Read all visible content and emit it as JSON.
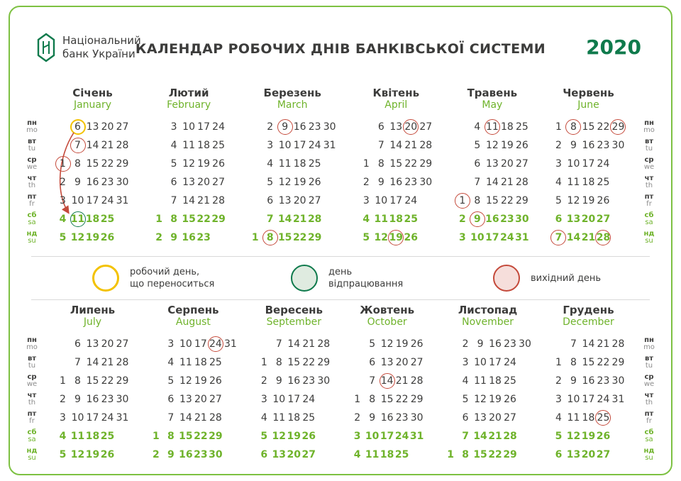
{
  "header": {
    "logo_text": "Національний\nбанк України",
    "title": "КАЛЕНДАР РОБОЧИХ ДНІВ БАНКІВСЬКОЇ СИСТЕМИ",
    "year": "2020"
  },
  "colors": {
    "accent": "#6FB32B",
    "border": "#7DC142",
    "dark": "#3C3C3B",
    "red": "#C4493A",
    "yellow": "#F3C200",
    "darkgreen": "#0F7A4C",
    "pinkfill": "#F6DEDB",
    "greenfill": "#DFEBE0"
  },
  "weekday_labels": [
    {
      "ua": "пн",
      "en": "mo"
    },
    {
      "ua": "вт",
      "en": "tu"
    },
    {
      "ua": "ср",
      "en": "we"
    },
    {
      "ua": "чт",
      "en": "th"
    },
    {
      "ua": "пт",
      "en": "fr"
    },
    {
      "ua": "сб",
      "en": "sa"
    },
    {
      "ua": "нд",
      "en": "su"
    }
  ],
  "legend": {
    "items": [
      {
        "type": "moved-working-day",
        "label": "робочий день,\nщо переноситься"
      },
      {
        "type": "workoff-day",
        "label": "день\nвідпрацювання"
      },
      {
        "type": "day-off",
        "label": "вихідний день"
      }
    ]
  },
  "months": [
    {
      "ua": "Січень",
      "en": "January",
      "cols": 5,
      "arrow": true,
      "rows": [
        [
          null,
          6,
          13,
          20,
          27
        ],
        [
          null,
          7,
          14,
          21,
          28
        ],
        [
          1,
          8,
          15,
          22,
          29
        ],
        [
          2,
          9,
          16,
          23,
          30
        ],
        [
          3,
          10,
          17,
          24,
          31
        ],
        [
          4,
          11,
          18,
          25,
          null
        ],
        [
          5,
          12,
          19,
          26,
          null
        ]
      ],
      "marks": {
        "1": "red",
        "7": "red",
        "6": "yellow",
        "11": "green"
      }
    },
    {
      "ua": "Лютий",
      "en": "February",
      "cols": 5,
      "rows": [
        [
          null,
          3,
          10,
          17,
          24
        ],
        [
          null,
          4,
          11,
          18,
          25
        ],
        [
          null,
          5,
          12,
          19,
          26
        ],
        [
          null,
          6,
          13,
          20,
          27
        ],
        [
          null,
          7,
          14,
          21,
          28
        ],
        [
          1,
          8,
          15,
          22,
          29
        ],
        [
          2,
          9,
          16,
          23,
          null
        ]
      ],
      "marks": {}
    },
    {
      "ua": "Березень",
      "en": "March",
      "cols": 6,
      "rows": [
        [
          null,
          2,
          9,
          16,
          23,
          30
        ],
        [
          null,
          3,
          10,
          17,
          24,
          31
        ],
        [
          null,
          4,
          11,
          18,
          25,
          null
        ],
        [
          null,
          5,
          12,
          19,
          26,
          null
        ],
        [
          null,
          6,
          13,
          20,
          27,
          null
        ],
        [
          null,
          7,
          14,
          21,
          28,
          null
        ],
        [
          1,
          8,
          15,
          22,
          29,
          null
        ]
      ],
      "marks": {
        "9": "red",
        "8": "red"
      }
    },
    {
      "ua": "Квітень",
      "en": "April",
      "cols": 5,
      "rows": [
        [
          null,
          6,
          13,
          20,
          27
        ],
        [
          null,
          7,
          14,
          21,
          28
        ],
        [
          1,
          8,
          15,
          22,
          29
        ],
        [
          2,
          9,
          16,
          23,
          30
        ],
        [
          3,
          10,
          17,
          24,
          null
        ],
        [
          4,
          11,
          18,
          25,
          null
        ],
        [
          5,
          12,
          19,
          26,
          null
        ]
      ],
      "marks": {
        "20": "red",
        "19": "red"
      }
    },
    {
      "ua": "Травень",
      "en": "May",
      "cols": 5,
      "rows": [
        [
          null,
          4,
          11,
          18,
          25
        ],
        [
          null,
          5,
          12,
          19,
          26
        ],
        [
          null,
          6,
          13,
          20,
          27
        ],
        [
          null,
          7,
          14,
          21,
          28
        ],
        [
          1,
          8,
          15,
          22,
          29
        ],
        [
          2,
          9,
          16,
          23,
          30
        ],
        [
          3,
          10,
          17,
          24,
          31
        ]
      ],
      "marks": {
        "11": "red",
        "1": "red",
        "9": "red"
      }
    },
    {
      "ua": "Червень",
      "en": "June",
      "cols": 5,
      "rows": [
        [
          1,
          8,
          15,
          22,
          29
        ],
        [
          2,
          9,
          16,
          23,
          30
        ],
        [
          3,
          10,
          17,
          24,
          null
        ],
        [
          4,
          11,
          18,
          25,
          null
        ],
        [
          5,
          12,
          19,
          26,
          null
        ],
        [
          6,
          13,
          20,
          27,
          null
        ],
        [
          7,
          14,
          21,
          28,
          null
        ]
      ],
      "marks": {
        "8": "red",
        "29": "red",
        "7": "red",
        "28": "red"
      }
    },
    {
      "ua": "Липень",
      "en": "July",
      "cols": 5,
      "rows": [
        [
          null,
          6,
          13,
          20,
          27
        ],
        [
          null,
          7,
          14,
          21,
          28
        ],
        [
          1,
          8,
          15,
          22,
          29
        ],
        [
          2,
          9,
          16,
          23,
          30
        ],
        [
          3,
          10,
          17,
          24,
          31
        ],
        [
          4,
          11,
          18,
          25,
          null
        ],
        [
          5,
          12,
          19,
          26,
          null
        ]
      ],
      "marks": {}
    },
    {
      "ua": "Серпень",
      "en": "August",
      "cols": 6,
      "rows": [
        [
          null,
          3,
          10,
          17,
          24,
          31
        ],
        [
          null,
          4,
          11,
          18,
          25,
          null
        ],
        [
          null,
          5,
          12,
          19,
          26,
          null
        ],
        [
          null,
          6,
          13,
          20,
          27,
          null
        ],
        [
          null,
          7,
          14,
          21,
          28,
          null
        ],
        [
          1,
          8,
          15,
          22,
          29,
          null
        ],
        [
          2,
          9,
          16,
          23,
          30,
          null
        ]
      ],
      "marks": {
        "24": "red"
      }
    },
    {
      "ua": "Вересень",
      "en": "September",
      "cols": 5,
      "rows": [
        [
          null,
          7,
          14,
          21,
          28
        ],
        [
          1,
          8,
          15,
          22,
          29
        ],
        [
          2,
          9,
          16,
          23,
          30
        ],
        [
          3,
          10,
          17,
          24,
          null
        ],
        [
          4,
          11,
          18,
          25,
          null
        ],
        [
          5,
          12,
          19,
          26,
          null
        ],
        [
          6,
          13,
          20,
          27,
          null
        ]
      ],
      "marks": {}
    },
    {
      "ua": "Жовтень",
      "en": "October",
      "cols": 5,
      "rows": [
        [
          null,
          5,
          12,
          19,
          26
        ],
        [
          null,
          6,
          13,
          20,
          27
        ],
        [
          null,
          7,
          14,
          21,
          28
        ],
        [
          1,
          8,
          15,
          22,
          29
        ],
        [
          2,
          9,
          16,
          23,
          30
        ],
        [
          3,
          10,
          17,
          24,
          31
        ],
        [
          4,
          11,
          18,
          25,
          null
        ]
      ],
      "marks": {
        "14": "red"
      }
    },
    {
      "ua": "Листопад",
      "en": "November",
      "cols": 6,
      "rows": [
        [
          null,
          2,
          9,
          16,
          23,
          30
        ],
        [
          null,
          3,
          10,
          17,
          24,
          null
        ],
        [
          null,
          4,
          11,
          18,
          25,
          null
        ],
        [
          null,
          5,
          12,
          19,
          26,
          null
        ],
        [
          null,
          6,
          13,
          20,
          27,
          null
        ],
        [
          null,
          7,
          14,
          21,
          28,
          null
        ],
        [
          1,
          8,
          15,
          22,
          29,
          null
        ]
      ],
      "marks": {}
    },
    {
      "ua": "Грудень",
      "en": "December",
      "cols": 5,
      "rows": [
        [
          null,
          7,
          14,
          21,
          28
        ],
        [
          1,
          8,
          15,
          22,
          29
        ],
        [
          2,
          9,
          16,
          23,
          30
        ],
        [
          3,
          10,
          17,
          24,
          31
        ],
        [
          4,
          11,
          18,
          25,
          null
        ],
        [
          5,
          12,
          19,
          26,
          null
        ],
        [
          6,
          13,
          20,
          27,
          null
        ]
      ],
      "marks": {
        "25": "red"
      }
    }
  ]
}
